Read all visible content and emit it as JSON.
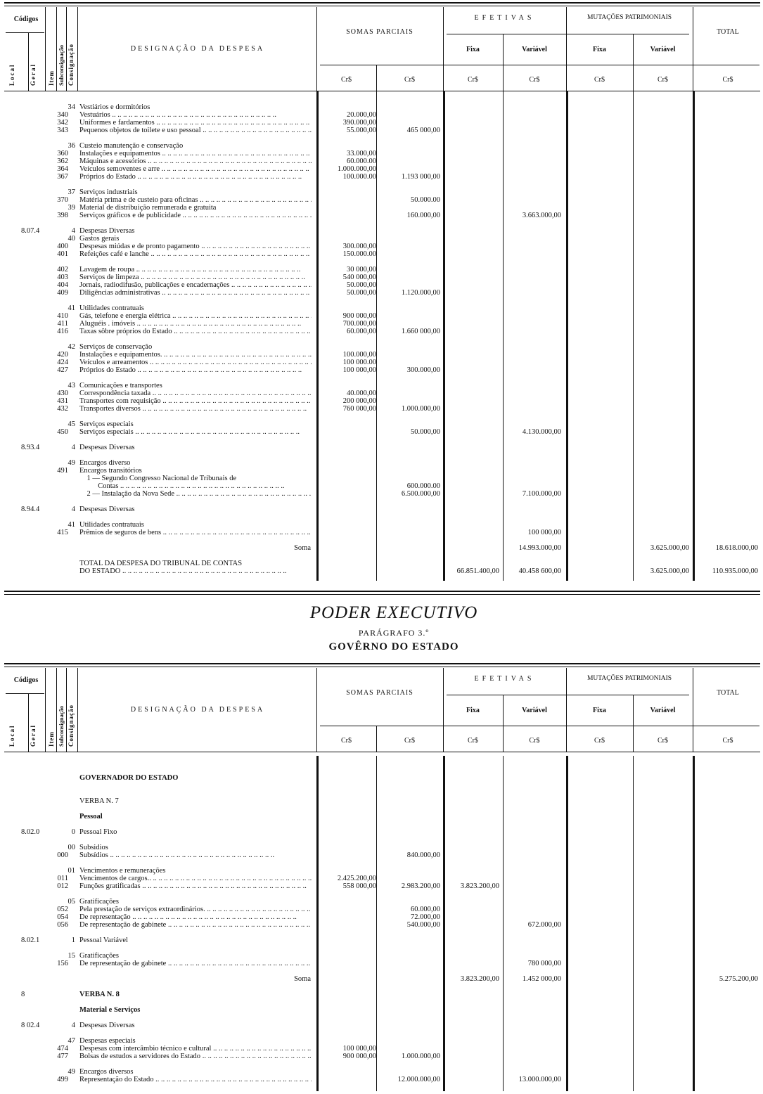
{
  "header": {
    "codigos": "Códigos",
    "local": "Local",
    "geral": "Geral",
    "item": "Item",
    "subconsignacao": "Subconsignação",
    "consignacao": "Consignação",
    "designacao": "DESIGNAÇÃO DA DESPESA",
    "somas_parciais": "SOMAS PARCIAIS",
    "efetivas": "EFETIVAS",
    "mutacoes": "MUTAÇÕES PATRIMONIAIS",
    "total": "TOTAL",
    "fixa": "Fixa",
    "variavel": "Variável",
    "currency": "Cr$"
  },
  "section_top": {
    "rows": [
      {
        "group": "34",
        "desc": "Vestiários e dormitórios"
      },
      {
        "item": "340",
        "desc": "Vestuários",
        "lead": true,
        "sp1": "20.000,00"
      },
      {
        "item": "342",
        "desc": "Uniformes e fardamentos",
        "lead": true,
        "sp1": "390.000,00"
      },
      {
        "item": "343",
        "desc": "Pequenos objetos de toilete e uso pessoal",
        "lead": true,
        "sp1": "55.000,00",
        "sp2": "465 000,00"
      },
      {},
      {
        "group": "36",
        "desc": "Custeio manutenção e conservação"
      },
      {
        "item": "360",
        "desc": "Instalações e equipamentos",
        "lead": true,
        "sp1": "33.000,00"
      },
      {
        "item": "362",
        "desc": "Máquinas e acessórios",
        "lead": true,
        "sp1": "60.000.00"
      },
      {
        "item": "364",
        "desc": "Veículos semoventes e arre",
        "lead": true,
        "sp1": "1.000.000,00"
      },
      {
        "item": "367",
        "desc": "Próprios do Estado",
        "lead": true,
        "sp1": "100.000.00",
        "sp2": "1.193 000,00"
      },
      {},
      {
        "group": "37",
        "desc": "Serviços industriais"
      },
      {
        "item": "370",
        "desc": "Matéria prima e de custeio para oficinas",
        "lead": true,
        "sp2": "50.000.00"
      },
      {
        "group": "39",
        "desc": "Material de distribuição remunerada e gratuita"
      },
      {
        "item": "398",
        "desc": "Serviços gráficos e de publicidade",
        "lead": true,
        "sp2": "160.000,00",
        "ef_var": "3.663.000,00"
      },
      {},
      {
        "local": "8.07.4",
        "group": "4",
        "desc": "Despesas Diversas"
      },
      {
        "group": "40",
        "desc": "Gastos gerais"
      },
      {
        "item": "400",
        "desc": "Despesas miúdas e de pronto pagamento",
        "lead": true,
        "sp1": "300.000,00"
      },
      {
        "item": "401",
        "desc": "Refeições café e lanche",
        "lead": true,
        "sp1": "150.000.00"
      },
      {},
      {
        "item": "402",
        "desc": "Lavagem de roupa",
        "lead": true,
        "sp1": "30 000,00"
      },
      {
        "item": "403",
        "desc": "Serviços de limpeza",
        "lead": true,
        "sp1": "540 000,00"
      },
      {
        "item": "404",
        "desc": "Jornais, radiodifusão, publicações e encadernações",
        "lead": true,
        "sp1": "50.000,00"
      },
      {
        "item": "409",
        "desc": "Diligências administrativas",
        "lead": true,
        "sp1": "50.000,00",
        "sp2": "1.120.000,00"
      },
      {},
      {
        "group": "41",
        "desc": "Utilidades contratuais"
      },
      {
        "item": "410",
        "desc": "Gás, telefone e energia elétrica",
        "lead": true,
        "sp1": "900 000,00"
      },
      {
        "item": "411",
        "desc": "Aluguéis . imóveis",
        "lead": true,
        "sp1": "700.000,00"
      },
      {
        "item": "416",
        "desc": "Taxas sôbre próprios do Estado",
        "lead": true,
        "sp1": "60.000,00",
        "sp2": "1.660 000,00"
      },
      {},
      {
        "group": "42",
        "desc": "Serviços de conservação"
      },
      {
        "item": "420",
        "desc": "Instalações e equipamentos.",
        "lead": true,
        "sp1": "100.000,00"
      },
      {
        "item": "424",
        "desc": "Veículos e arreamentos",
        "lead": true,
        "sp1": "100 000.00"
      },
      {
        "item": "427",
        "desc": "Próprios do Estado",
        "lead": true,
        "sp1": "100 000,00",
        "sp2": "300.000,00"
      },
      {},
      {
        "group": "43",
        "desc": "Comunicações e transportes"
      },
      {
        "item": "430",
        "desc": "Correspondência taxada",
        "lead": true,
        "sp1": "40.000,00"
      },
      {
        "item": "431",
        "desc": "Transportes com requisição",
        "lead": true,
        "sp1": "200 000,00"
      },
      {
        "item": "432",
        "desc": "Transportes diversos",
        "lead": true,
        "sp1": "760 000,00",
        "sp2": "1.000.000,00"
      },
      {},
      {
        "group": "45",
        "desc": "Serviços especiais"
      },
      {
        "item": "450",
        "desc": "Serviços especiais",
        "lead": true,
        "sp2": "50.000,00",
        "ef_var": "4.130.000,00"
      },
      {},
      {
        "local": "8.93.4",
        "group": "4",
        "desc": "Despesas Diversas"
      },
      {},
      {
        "group": "49",
        "desc": "Encargos diverso"
      },
      {
        "item": "491",
        "desc": "Encargos transitórios"
      },
      {
        "desc": "    1 — Segundo Congresso Nacional de Tribunais de"
      },
      {
        "desc": "          Contas",
        "lead": true,
        "sp2": "600.000.00"
      },
      {
        "desc": "    2 — Instalação da Nova Sede",
        "lead": true,
        "sp2": "6.500.000,00",
        "ef_var": "7.100.000,00"
      },
      {},
      {
        "local": "8.94.4",
        "group": "4",
        "desc": "Despesas Diversas"
      },
      {},
      {
        "group": "41",
        "desc": "Utilidades contratuais"
      },
      {
        "item": "415",
        "desc": "Prêmios de seguros de bens",
        "lead": true,
        "ef_var": "100 000,00"
      },
      {},
      {
        "soma": "Soma",
        "ef_var": "14.993.000,00",
        "mp_var": "3.625.000,00",
        "total": "18.618.000,00"
      },
      {},
      {
        "desc": "TOTAL DA DESPESA DO TRIBUNAL DE CONTAS"
      },
      {
        "desc": "DO ESTADO",
        "lead": true,
        "ef_fixa": "66.851.400,00",
        "ef_var": "40.458 600,00",
        "mp_var": "3.625.000,00",
        "total": "110.935.000,00"
      }
    ]
  },
  "titles": {
    "power": "PODER EXECUTIVO",
    "paragraph": "PARÁGRAFO 3.º",
    "government": "GOVÊRNO DO ESTADO"
  },
  "section_bottom": {
    "rows": [
      {
        "desc": "GOVERNADOR DO ESTADO",
        "heading": true
      },
      {},
      {},
      {
        "desc": "VERBA N. 7"
      },
      {},
      {
        "desc": "Pessoal",
        "heading": true
      },
      {},
      {
        "local": "8.02.0",
        "group": "0",
        "desc": "Pessoal Fixo"
      },
      {},
      {
        "group": "00",
        "desc": "Subsidios"
      },
      {
        "item": "000",
        "desc": "Subsídios",
        "lead": true,
        "sp2": "840.000,00"
      },
      {},
      {
        "group": "01",
        "desc": "Vencimentos e remunerações"
      },
      {
        "item": "011",
        "desc": "Vencimentos de cargos..",
        "lead": true,
        "sp1": "2.425.200,00"
      },
      {
        "item": "012",
        "desc": "Funções gratificadas",
        "lead": true,
        "sp1": "558 000,00",
        "sp2": "2.983.200,00",
        "ef_fixa": "3.823.200,00"
      },
      {},
      {
        "group": "05",
        "desc": "Gratificações"
      },
      {
        "item": "052",
        "desc": "Pela prestação de serviços extraordinários.",
        "lead": true,
        "sp2": "60.000,00"
      },
      {
        "item": "054",
        "desc": "De representação",
        "lead": true,
        "sp2": "72.000,00"
      },
      {
        "item": "056",
        "desc": "De representação de gabinete",
        "lead": true,
        "sp2": "540.000,00",
        "ef_var": "672.000,00"
      },
      {},
      {
        "local": "8.02.1",
        "group": "1",
        "desc": "Pessoal Variável"
      },
      {},
      {
        "group": "15",
        "desc": "Gratificações"
      },
      {
        "item": "156",
        "desc": "De representação de gabinete",
        "lead": true,
        "ef_var": "780 000,00"
      },
      {},
      {
        "soma": "Soma",
        "ef_fixa": "3.823.200,00",
        "ef_var": "1.452 000,00",
        "total": "5.275.200,00"
      },
      {},
      {
        "local": "8",
        "desc": "VERBA N. 8",
        "heading": true
      },
      {},
      {
        "desc": "Material e Serviços",
        "heading": true
      },
      {},
      {
        "local": "8 02.4",
        "group": "4",
        "desc": "Despesas Diversas"
      },
      {},
      {
        "group": "47",
        "desc": "Despesas especiais"
      },
      {
        "item": "474",
        "desc": "Despesas com intercâmbio técnico e cultural",
        "lead": true,
        "sp1": "100 000,00"
      },
      {
        "item": "477",
        "desc": "Bolsas de estudos a servidores do Estado",
        "lead": true,
        "sp1": "900 000,00",
        "sp2": "1.000.000,00"
      },
      {},
      {
        "group": "49",
        "desc": "Encargos diversos"
      },
      {
        "item": "499",
        "desc": "Representação do Estado",
        "lead": true,
        "sp2": "12.000.000,00",
        "ef_var": "13.000.000,00"
      }
    ]
  }
}
